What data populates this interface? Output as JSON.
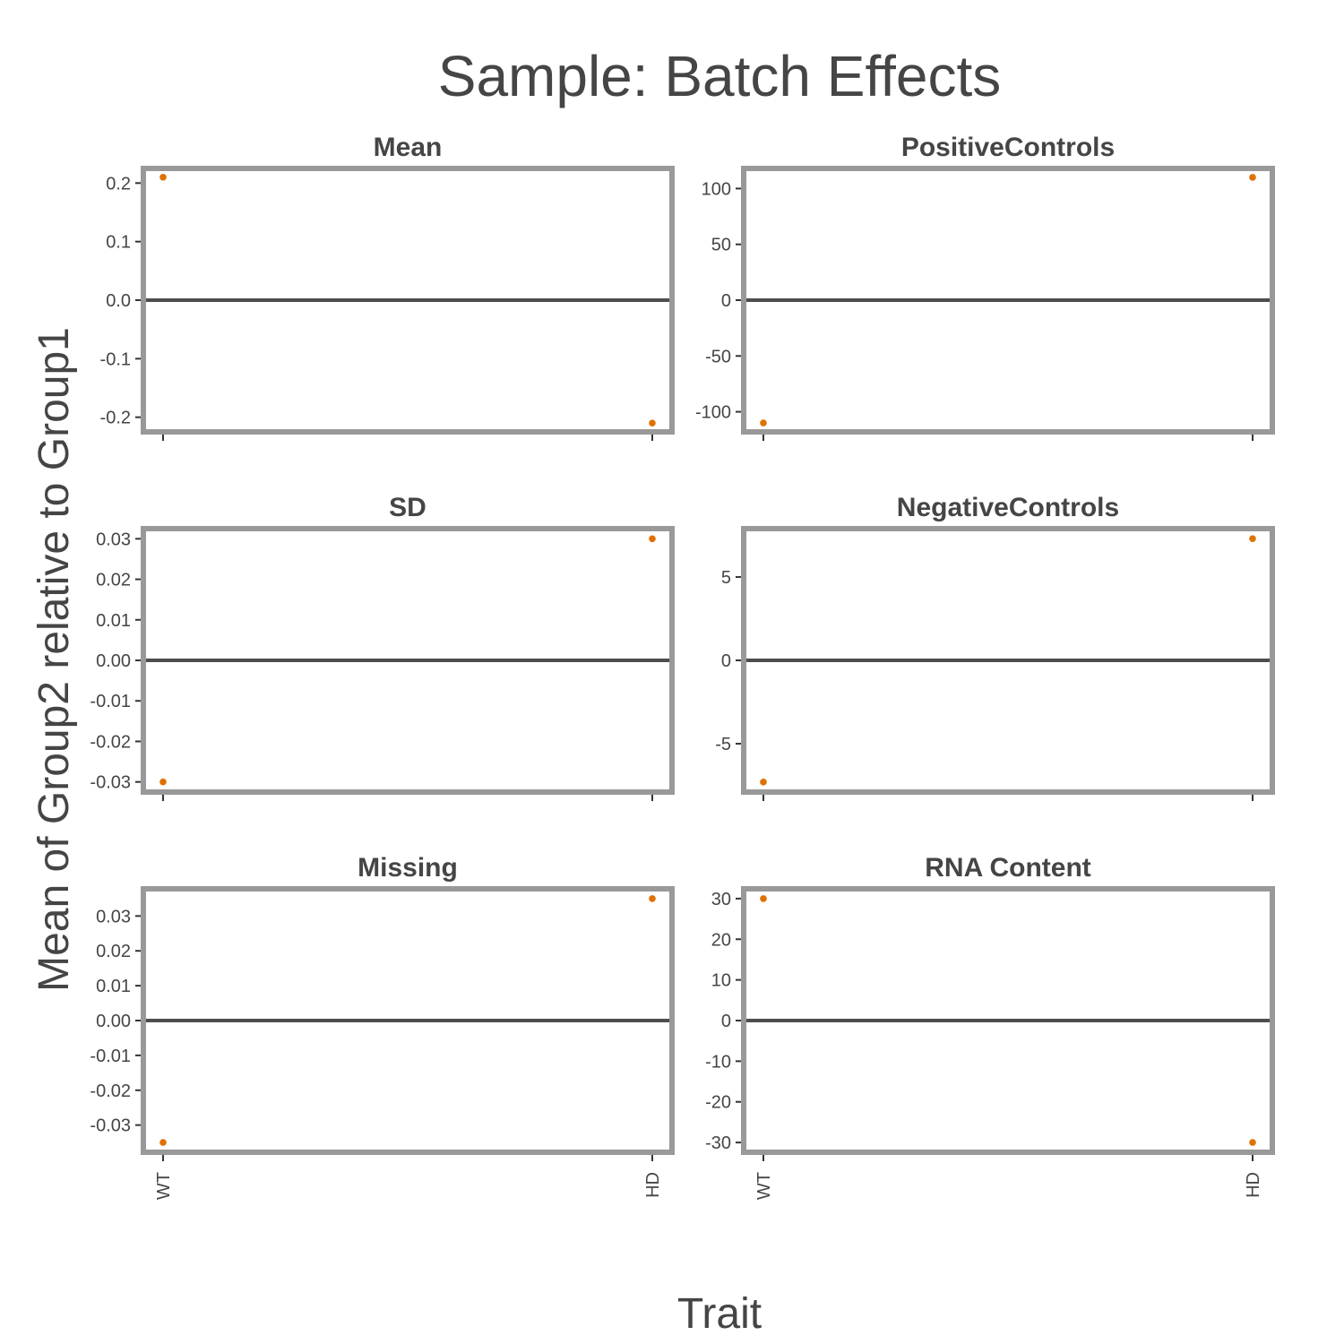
{
  "title": "Sample: Batch Effects",
  "xlabel": "Trait",
  "ylabel": "Mean of Group2 relative to Group1",
  "colors": {
    "point": "#e07000",
    "frame": "#999999",
    "zero_line": "#4d4d4d",
    "text": "#454545"
  },
  "chart_data": [
    {
      "type": "scatter",
      "title": "Mean",
      "categories": [
        "WT",
        "HD"
      ],
      "values": [
        0.21,
        -0.21
      ],
      "ylim": [
        -0.225,
        0.225
      ],
      "yticks": [
        0.2,
        0.1,
        0.0,
        -0.1,
        -0.2
      ],
      "ytick_labels": [
        "0.2",
        "0.1",
        "0.0",
        "-0.1",
        "-0.2"
      ]
    },
    {
      "type": "scatter",
      "title": "PositiveControls",
      "categories": [
        "WT",
        "HD"
      ],
      "values": [
        -110,
        110
      ],
      "ylim": [
        -118,
        118
      ],
      "yticks": [
        100,
        50,
        0,
        -50,
        -100
      ],
      "ytick_labels": [
        "100",
        "50",
        "0",
        "-50",
        "-100"
      ]
    },
    {
      "type": "scatter",
      "title": "SD",
      "categories": [
        "WT",
        "HD"
      ],
      "values": [
        -0.03,
        0.03
      ],
      "ylim": [
        -0.0325,
        0.0325
      ],
      "yticks": [
        0.03,
        0.02,
        0.01,
        0.0,
        -0.01,
        -0.02,
        -0.03
      ],
      "ytick_labels": [
        "0.03",
        "0.02",
        "0.01",
        "0.00",
        "-0.01",
        "-0.02",
        "-0.03"
      ]
    },
    {
      "type": "scatter",
      "title": "NegativeControls",
      "categories": [
        "WT",
        "HD"
      ],
      "values": [
        -7.3,
        7.3
      ],
      "ylim": [
        -7.9,
        7.9
      ],
      "yticks": [
        5,
        0,
        -5
      ],
      "ytick_labels": [
        "5",
        "0",
        "-5"
      ]
    },
    {
      "type": "scatter",
      "title": "Missing",
      "categories": [
        "WT",
        "HD"
      ],
      "values": [
        -0.035,
        0.035
      ],
      "ylim": [
        -0.0378,
        0.0378
      ],
      "yticks": [
        0.03,
        0.02,
        0.01,
        0.0,
        -0.01,
        -0.02,
        -0.03
      ],
      "ytick_labels": [
        "0.03",
        "0.02",
        "0.01",
        "0.00",
        "-0.01",
        "-0.02",
        "-0.03"
      ]
    },
    {
      "type": "scatter",
      "title": "RNA Content",
      "categories": [
        "WT",
        "HD"
      ],
      "values": [
        30,
        -30
      ],
      "ylim": [
        -32.4,
        32.4
      ],
      "yticks": [
        30,
        20,
        10,
        0,
        -10,
        -20,
        -30
      ],
      "ytick_labels": [
        "30",
        "20",
        "10",
        "0",
        "-10",
        "-20",
        "-30"
      ]
    }
  ]
}
